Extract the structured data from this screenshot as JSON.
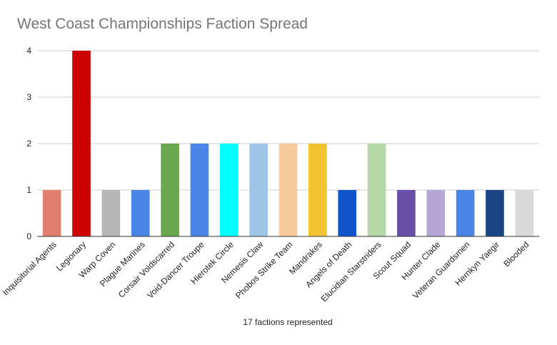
{
  "chart_data": {
    "type": "bar",
    "title": "West Coast Championships Faction Spread",
    "xlabel": "17 factions represented",
    "ylabel": "",
    "ylim": [
      0,
      4
    ],
    "yticks": [
      0,
      1,
      2,
      3,
      4
    ],
    "grid": true,
    "legend": "none",
    "categories": [
      "Inquisitorial Agents",
      "Legionary",
      "Warp Coven",
      "Plague Marines",
      "Corsair Voidscarred",
      "Void-Dancer Troupe",
      "Hierotek Circle",
      "Nemesis Claw",
      "Phobos Strike Team",
      "Mandrakes",
      "Angels of Death",
      "Elucidian Starstriders",
      "Scout Squad",
      "Hunter Clade",
      "Veteran Guardsmen",
      "Hernkyn Yaegir",
      "Blooded"
    ],
    "values": [
      1,
      4,
      1,
      1,
      2,
      2,
      2,
      2,
      2,
      2,
      1,
      2,
      1,
      1,
      1,
      1,
      1
    ],
    "colors": [
      "#e07f6f",
      "#cc0000",
      "#b7b7b7",
      "#4a86e8",
      "#6aa84f",
      "#4a86e8",
      "#00ffff",
      "#9fc5e8",
      "#f9cb9c",
      "#f1c232",
      "#1155cc",
      "#b6d7a8",
      "#674ea7",
      "#b4a7d6",
      "#4a86e8",
      "#1c4587",
      "#d9d9d9"
    ]
  }
}
